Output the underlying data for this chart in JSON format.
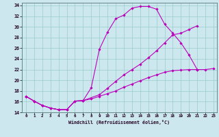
{
  "bg_color": "#cce8ee",
  "line_color": "#bb00bb",
  "grid_color": "#99cccc",
  "xlabel": "Windchill (Refroidissement éolien,°C)",
  "xlim_min": -0.5,
  "xlim_max": 23.4,
  "ylim_min": 14,
  "ylim_max": 34.5,
  "xticks": [
    0,
    1,
    2,
    3,
    4,
    5,
    6,
    7,
    8,
    9,
    10,
    11,
    12,
    13,
    14,
    15,
    16,
    17,
    18,
    19,
    20,
    21,
    22,
    23
  ],
  "yticks": [
    14,
    16,
    18,
    20,
    22,
    24,
    26,
    28,
    30,
    32,
    34
  ],
  "curve_top_x": [
    0,
    1,
    2,
    3,
    4,
    5,
    6,
    7,
    8,
    9,
    10,
    11,
    12,
    13,
    14,
    15,
    16,
    17,
    18,
    19,
    20,
    21
  ],
  "curve_top_y": [
    17.0,
    16.1,
    15.3,
    14.8,
    14.5,
    14.5,
    16.1,
    16.2,
    18.6,
    25.8,
    29.0,
    31.5,
    32.2,
    33.5,
    33.8,
    33.8,
    33.3,
    30.5,
    28.8,
    27.0,
    24.7,
    22.0
  ],
  "curve_mid_x": [
    0,
    1,
    2,
    3,
    4,
    5,
    6,
    7,
    9,
    10,
    11,
    12,
    13,
    14,
    15,
    16,
    17,
    18,
    19,
    20,
    21
  ],
  "curve_mid_y": [
    17.0,
    16.1,
    15.3,
    14.8,
    14.5,
    14.5,
    16.1,
    16.2,
    17.3,
    18.5,
    19.8,
    21.0,
    22.0,
    23.0,
    24.2,
    25.5,
    27.0,
    28.5,
    28.8,
    29.5,
    30.2
  ],
  "curve_bot_x": [
    0,
    1,
    2,
    3,
    4,
    5,
    6,
    7,
    8,
    9,
    10,
    11,
    12,
    13,
    14,
    15,
    16,
    17,
    18,
    19,
    20,
    21,
    22,
    23
  ],
  "curve_bot_y": [
    17.0,
    16.1,
    15.3,
    14.8,
    14.5,
    14.5,
    16.1,
    16.2,
    16.5,
    17.0,
    17.5,
    18.0,
    18.7,
    19.3,
    19.9,
    20.5,
    21.0,
    21.5,
    21.8,
    21.9,
    22.0,
    22.0,
    22.0,
    22.2
  ]
}
